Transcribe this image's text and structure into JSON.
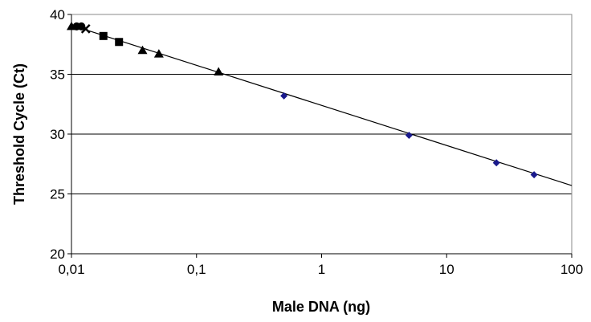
{
  "chart_data": {
    "type": "scatter",
    "title": "",
    "xlabel": "Male DNA (ng)",
    "ylabel": "Threshold Cycle (Ct)",
    "x_scale": "log",
    "xlim": [
      0.01,
      100
    ],
    "ylim": [
      20,
      40
    ],
    "x_ticks": [
      0.01,
      0.1,
      1,
      10,
      100
    ],
    "x_tick_labels": [
      "0,01",
      "0,1",
      "1",
      "10",
      "100"
    ],
    "y_ticks": [
      20,
      25,
      30,
      35,
      40
    ],
    "y_tick_labels": [
      "20",
      "25",
      "30",
      "35",
      "40"
    ],
    "grid": "horizontal major gridlines",
    "legend": "none",
    "series": [
      {
        "marker": "diamond",
        "color": "#1a1a8c",
        "points": [
          {
            "x": 0.5,
            "y": 33.2
          },
          {
            "x": 5,
            "y": 29.9
          },
          {
            "x": 25,
            "y": 27.6
          },
          {
            "x": 50,
            "y": 26.6
          }
        ]
      },
      {
        "marker": "triangle",
        "color": "#000000",
        "points": [
          {
            "x": 0.01,
            "y": 39.0
          },
          {
            "x": 0.037,
            "y": 37.0
          },
          {
            "x": 0.05,
            "y": 36.7
          },
          {
            "x": 0.15,
            "y": 35.2
          }
        ]
      },
      {
        "marker": "square",
        "color": "#000000",
        "points": [
          {
            "x": 0.018,
            "y": 38.2
          },
          {
            "x": 0.024,
            "y": 37.7
          }
        ]
      },
      {
        "marker": "circle",
        "color": "#000000",
        "points": [
          {
            "x": 0.011,
            "y": 39.0
          },
          {
            "x": 0.012,
            "y": 39.0
          }
        ]
      },
      {
        "marker": "x",
        "color": "#000000",
        "points": [
          {
            "x": 0.013,
            "y": 38.8
          }
        ]
      }
    ],
    "trendline": {
      "type": "log-linear",
      "color": "#000000",
      "points": [
        {
          "x": 0.01,
          "y": 39.1
        },
        {
          "x": 100,
          "y": 25.7
        }
      ]
    }
  }
}
